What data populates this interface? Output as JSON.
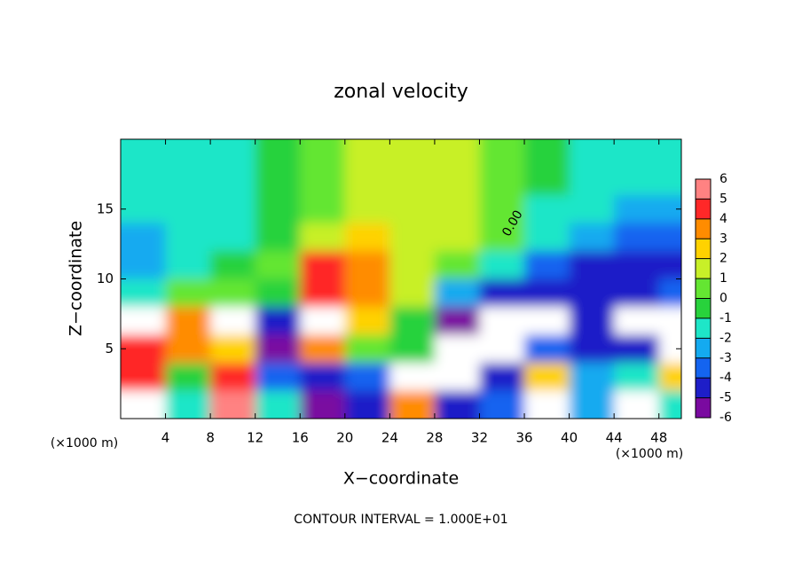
{
  "chart_data": {
    "type": "heatmap",
    "title": "zonal velocity",
    "xlabel": "X−coordinate",
    "ylabel": "Z−coordinate",
    "xunit_left": "(×1000 m)",
    "xunit_right": "(×1000 m)",
    "footer": "CONTOUR INTERVAL = 1.000E+01",
    "contour_label": "0.00",
    "xlim": [
      0,
      50
    ],
    "ylim": [
      0,
      20
    ],
    "xticks": [
      4,
      8,
      12,
      16,
      20,
      24,
      28,
      32,
      36,
      40,
      44,
      48
    ],
    "yticks": [
      5,
      10,
      15
    ],
    "x": [
      2,
      6,
      10,
      14,
      18,
      22,
      26,
      30,
      34,
      38,
      42,
      46,
      50
    ],
    "y": [
      19,
      17,
      15,
      13,
      11,
      9,
      7,
      5,
      3,
      1
    ],
    "values": [
      [
        -1,
        -1,
        -1,
        -0.5,
        0.5,
        1.5,
        2,
        1.5,
        0.5,
        -0.5,
        -1,
        -1,
        -1
      ],
      [
        -1,
        -1,
        -1,
        -0.5,
        0.5,
        1.5,
        1.5,
        1.5,
        0.5,
        -0.5,
        -1,
        -1.5,
        -1.5
      ],
      [
        -1.5,
        -1.5,
        -1,
        -0.5,
        0.5,
        1.5,
        1.5,
        1.5,
        0.5,
        -1,
        -1.5,
        -2,
        -2.5
      ],
      [
        -2,
        -1.5,
        -1,
        -0.5,
        2,
        2.5,
        2,
        1.5,
        0.5,
        -1.5,
        -2.5,
        -3,
        -3.5
      ],
      [
        -2.5,
        -1,
        -0.5,
        0.5,
        4.5,
        3.5,
        2,
        1,
        -1,
        -3,
        -4,
        -4,
        -4.5
      ],
      [
        -1,
        0.5,
        0.5,
        -0.5,
        5,
        4,
        2,
        -2,
        -4.5,
        -4.5,
        -4,
        -4.5,
        -3
      ],
      [
        8,
        4,
        8,
        -4,
        8,
        3,
        0,
        -5,
        -8,
        -8,
        -4,
        -8,
        -8
      ],
      [
        5,
        4,
        3,
        -5,
        4,
        1,
        -0.5,
        -8,
        -8,
        -3,
        -4,
        -4,
        8
      ],
      [
        5,
        0,
        5,
        -3,
        -4,
        -3,
        -8,
        -8,
        -4,
        3,
        -2,
        -1,
        3
      ],
      [
        8,
        -1,
        6,
        -1,
        -5,
        -4,
        4,
        -4,
        -3,
        8,
        -2,
        8,
        -1
      ]
    ],
    "levels": [
      -6,
      -5,
      -4,
      -3,
      -2,
      -1,
      0,
      1,
      2,
      3,
      4,
      5,
      6
    ],
    "colors": [
      "#7a0aa0",
      "#1e1ec8",
      "#1464f0",
      "#14aaf0",
      "#1ee6c8",
      "#28d23c",
      "#64e632",
      "#c8f028",
      "#ffd200",
      "#ff8c00",
      "#ff2828",
      "#ff8282"
    ]
  }
}
